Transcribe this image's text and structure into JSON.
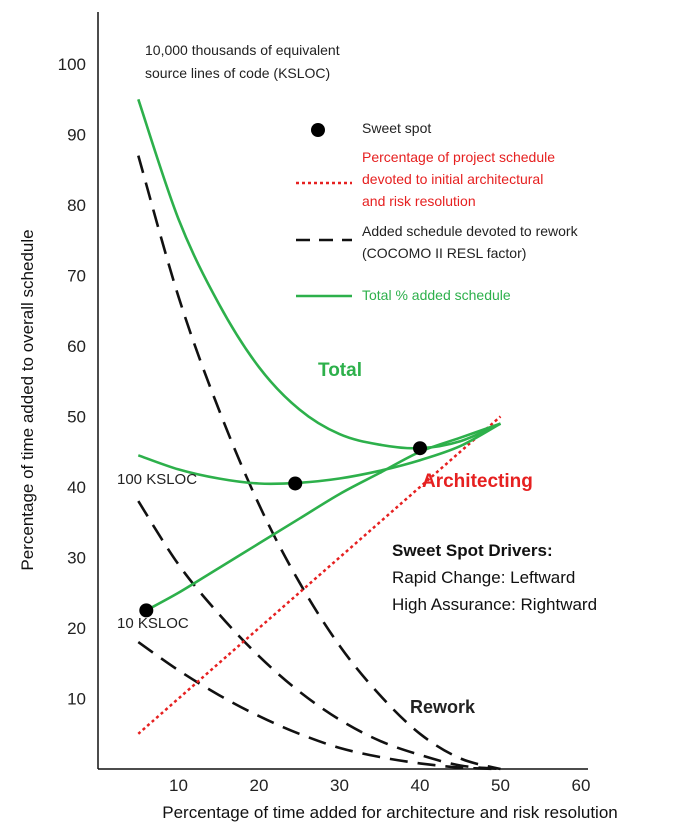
{
  "chart_data": {
    "type": "line",
    "title": "",
    "xlabel": "Percentage of time added for architecture and risk resolution",
    "ylabel": "Percentage of time added to overall schedule",
    "xlim": [
      0,
      60
    ],
    "ylim": [
      0,
      100
    ],
    "x_ticks": [
      "10",
      "20",
      "30",
      "40",
      "50",
      "60"
    ],
    "y_ticks": [
      "10",
      "20",
      "30",
      "40",
      "50",
      "60",
      "70",
      "80",
      "90",
      "100"
    ],
    "grid": false,
    "legend": {
      "position": "top-right",
      "sweet_spot": "Sweet spot",
      "architecture_lines": [
        "Percentage of project schedule",
        "devoted to initial architectural",
        "and risk resolution"
      ],
      "rework_lines": [
        "Added schedule devoted to rework",
        "(COCOMO II RESL factor)"
      ],
      "total": "Total % added schedule"
    },
    "colors": {
      "total": "#2db04b",
      "architecting": "#e62020",
      "rework": "#111111",
      "sweet_spot": "#000000"
    },
    "series": [
      {
        "name": "Architecting",
        "kind": "architecting",
        "x": [
          5,
          50
        ],
        "y": [
          5,
          50
        ]
      },
      {
        "kind": "rework",
        "x": [
          5,
          10,
          15,
          20,
          25,
          30,
          35,
          40,
          45,
          50
        ],
        "y": [
          87,
          67,
          51,
          37.5,
          26.5,
          17.5,
          10.5,
          5,
          1.5,
          0
        ]
      },
      {
        "kind": "rework",
        "x": [
          5,
          10,
          15,
          20,
          25,
          30,
          35,
          40,
          45,
          50
        ],
        "y": [
          38,
          29,
          22,
          16,
          11,
          7,
          4,
          2,
          0.5,
          0
        ]
      },
      {
        "kind": "rework",
        "x": [
          5,
          10,
          15,
          20,
          25,
          30,
          35,
          40,
          45,
          50
        ],
        "y": [
          18,
          14,
          10.5,
          7.5,
          5,
          3,
          1.7,
          0.8,
          0.2,
          0
        ]
      },
      {
        "kind": "total",
        "x": [
          5,
          10,
          15,
          20,
          25,
          30,
          35,
          40,
          45,
          50
        ],
        "y": [
          95,
          78,
          66,
          57,
          51,
          47.5,
          46,
          45.5,
          46.5,
          49
        ]
      },
      {
        "kind": "total",
        "x": [
          5,
          10,
          15,
          20,
          25,
          30,
          35,
          40,
          45,
          50
        ],
        "y": [
          44.5,
          42.5,
          41.2,
          40.5,
          40.6,
          41.2,
          42.3,
          43.8,
          45.8,
          49
        ]
      },
      {
        "kind": "total",
        "x": [
          6,
          10,
          15,
          20,
          25,
          30,
          35,
          40,
          45,
          50
        ],
        "y": [
          22.5,
          25,
          28.5,
          32,
          35.5,
          39,
          42,
          45,
          47,
          49
        ]
      }
    ],
    "sweet_spots": [
      {
        "x": 6,
        "y": 22.5
      },
      {
        "x": 24.5,
        "y": 40.5
      },
      {
        "x": 40,
        "y": 45.5
      }
    ],
    "annotations": {
      "ksloc_10000_lines": [
        "10,000 thousands of equivalent",
        "source lines of code (KSLOC)"
      ],
      "ksloc_100": "100 KSLOC",
      "ksloc_10": "10 KSLOC",
      "total": "Total",
      "architecting": "Architecting",
      "rework": "Rework"
    },
    "drivers": {
      "title": "Sweet Spot Drivers:",
      "items": [
        "Rapid Change: Leftward",
        "High Assurance: Rightward"
      ]
    }
  }
}
